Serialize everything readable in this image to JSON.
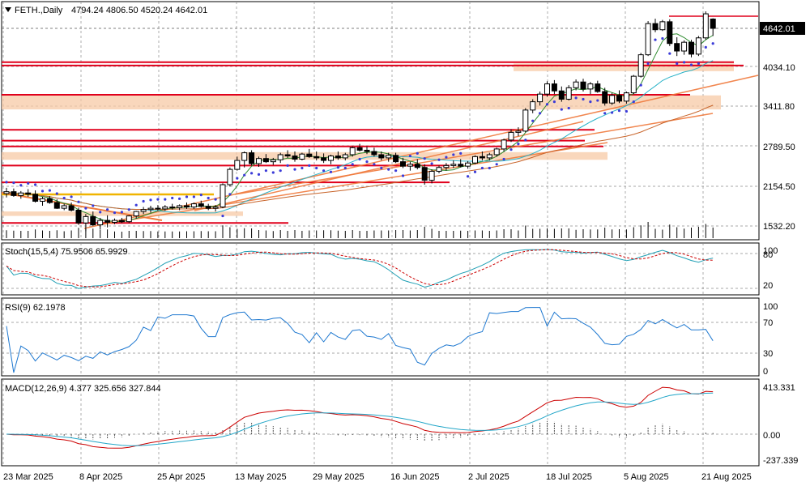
{
  "header": {
    "symbol": "FETH.,Daily",
    "ohlc": "4794.24 4806.50 4520.24 4642.01",
    "current_price_tag": "4642.01"
  },
  "panes": {
    "price": {
      "ticks": [
        "4034.10",
        "3411.80",
        "2789.50",
        "2154.50",
        "1532.20"
      ]
    },
    "stoch": {
      "label": "Stoch(15,5,4) 75.9506 65.9929",
      "ticks": [
        "100",
        "80",
        "20"
      ],
      "k": 75.95,
      "d": 65.99
    },
    "rsi": {
      "label": "RSI(9) 62.1978",
      "ticks": [
        "100",
        "70",
        "30",
        "0"
      ],
      "value": 62.2
    },
    "macd": {
      "label": "MACD(12,26,9) 4.377 325.656 327.844",
      "ticks": [
        "413.331",
        "0.00",
        "-237.339"
      ]
    }
  },
  "x_axis": [
    "23 Mar 2025",
    "8 Apr 2025",
    "25 Apr 2025",
    "13 May 2025",
    "29 May 2025",
    "16 Jun 2025",
    "2 Jul 2025",
    "18 Jul 2025",
    "5 Aug 2025",
    "21 Aug 2025"
  ],
  "colors": {
    "bull": "#ffffff",
    "bear": "#000000",
    "grid": "#8a8a8a",
    "support": "#e0001b",
    "zone": "#f7c9a6",
    "trend": "#f07a3c",
    "ma_fast": "#2e8b2e",
    "ma_mid": "#2ab3c8",
    "ma_slow": "#c8642a",
    "sar": "#3b3bd8",
    "stoch_main": "#1f9fb4",
    "stoch_signal": "#cc0000",
    "rsi": "#1e78d0",
    "macd_line": "#cc0000",
    "macd_signal": "#22a6c8",
    "macd_hist": "#555555"
  },
  "chart_data": {
    "type": "candlestick",
    "title": "FETH.,Daily",
    "x_labels": [
      "23 Mar 2025",
      "8 Apr 2025",
      "25 Apr 2025",
      "13 May 2025",
      "29 May 2025",
      "16 Jun 2025",
      "2 Jul 2025",
      "18 Jul 2025",
      "5 Aug 2025",
      "21 Aug 2025"
    ],
    "y_ticks": [
      1532.2,
      2154.5,
      2789.5,
      3411.8,
      4034.1
    ],
    "last_close": 4642.01,
    "candles": [
      [
        2040,
        2130,
        1980,
        2070
      ],
      [
        2070,
        2120,
        1990,
        2010
      ],
      [
        2010,
        2080,
        1960,
        2050
      ],
      [
        2050,
        2110,
        1990,
        2030
      ],
      [
        2030,
        2090,
        1900,
        1920
      ],
      [
        1920,
        1990,
        1850,
        1960
      ],
      [
        1960,
        2000,
        1880,
        1900
      ],
      [
        1900,
        1950,
        1800,
        1810
      ],
      [
        1810,
        1880,
        1780,
        1850
      ],
      [
        1850,
        1900,
        1760,
        1780
      ],
      [
        1780,
        1820,
        1550,
        1580
      ],
      [
        1580,
        1720,
        1450,
        1680
      ],
      [
        1680,
        1760,
        1530,
        1550
      ],
      [
        1550,
        1660,
        1480,
        1620
      ],
      [
        1620,
        1700,
        1510,
        1590
      ],
      [
        1590,
        1650,
        1560,
        1620
      ],
      [
        1620,
        1660,
        1580,
        1600
      ],
      [
        1600,
        1700,
        1580,
        1690
      ],
      [
        1690,
        1770,
        1650,
        1760
      ],
      [
        1760,
        1830,
        1720,
        1790
      ],
      [
        1790,
        1850,
        1740,
        1810
      ],
      [
        1810,
        1860,
        1770,
        1800
      ],
      [
        1800,
        1860,
        1770,
        1830
      ],
      [
        1830,
        1880,
        1790,
        1820
      ],
      [
        1820,
        1870,
        1780,
        1850
      ],
      [
        1850,
        1900,
        1800,
        1830
      ],
      [
        1830,
        1900,
        1800,
        1880
      ],
      [
        1880,
        1930,
        1820,
        1840
      ],
      [
        1840,
        1880,
        1780,
        1810
      ],
      [
        1810,
        1860,
        1760,
        1830
      ],
      [
        1830,
        2200,
        1810,
        2180
      ],
      [
        2180,
        2450,
        2150,
        2420
      ],
      [
        2420,
        2620,
        2400,
        2560
      ],
      [
        2560,
        2700,
        2450,
        2680
      ],
      [
        2680,
        2720,
        2480,
        2510
      ],
      [
        2510,
        2620,
        2460,
        2590
      ],
      [
        2590,
        2660,
        2520,
        2540
      ],
      [
        2540,
        2600,
        2490,
        2570
      ],
      [
        2570,
        2680,
        2520,
        2650
      ],
      [
        2650,
        2720,
        2600,
        2630
      ],
      [
        2630,
        2700,
        2540,
        2580
      ],
      [
        2580,
        2680,
        2560,
        2660
      ],
      [
        2660,
        2740,
        2600,
        2620
      ],
      [
        2620,
        2700,
        2560,
        2600
      ],
      [
        2600,
        2670,
        2520,
        2560
      ],
      [
        2560,
        2650,
        2500,
        2630
      ],
      [
        2630,
        2700,
        2570,
        2600
      ],
      [
        2600,
        2680,
        2560,
        2650
      ],
      [
        2650,
        2780,
        2620,
        2760
      ],
      [
        2760,
        2820,
        2700,
        2720
      ],
      [
        2720,
        2780,
        2660,
        2700
      ],
      [
        2700,
        2760,
        2620,
        2650
      ],
      [
        2650,
        2700,
        2560,
        2600
      ],
      [
        2600,
        2680,
        2540,
        2640
      ],
      [
        2640,
        2680,
        2520,
        2540
      ],
      [
        2540,
        2600,
        2440,
        2470
      ],
      [
        2470,
        2540,
        2400,
        2500
      ],
      [
        2500,
        2580,
        2420,
        2450
      ],
      [
        2450,
        2500,
        2180,
        2250
      ],
      [
        2250,
        2420,
        2200,
        2390
      ],
      [
        2390,
        2480,
        2360,
        2450
      ],
      [
        2450,
        2520,
        2400,
        2480
      ],
      [
        2480,
        2560,
        2440,
        2500
      ],
      [
        2500,
        2580,
        2450,
        2470
      ],
      [
        2470,
        2550,
        2430,
        2520
      ],
      [
        2520,
        2640,
        2500,
        2620
      ],
      [
        2620,
        2700,
        2560,
        2600
      ],
      [
        2600,
        2680,
        2560,
        2650
      ],
      [
        2650,
        2760,
        2620,
        2740
      ],
      [
        2740,
        2900,
        2700,
        2880
      ],
      [
        2880,
        3050,
        2850,
        3000
      ],
      [
        3000,
        3080,
        2940,
        3020
      ],
      [
        3020,
        3380,
        3000,
        3350
      ],
      [
        3350,
        3520,
        3300,
        3480
      ],
      [
        3480,
        3640,
        3420,
        3600
      ],
      [
        3600,
        3800,
        3560,
        3760
      ],
      [
        3760,
        3820,
        3600,
        3650
      ],
      [
        3650,
        3720,
        3480,
        3520
      ],
      [
        3520,
        3740,
        3500,
        3700
      ],
      [
        3700,
        3830,
        3660,
        3790
      ],
      [
        3790,
        3840,
        3640,
        3680
      ],
      [
        3680,
        3790,
        3600,
        3760
      ],
      [
        3760,
        3810,
        3620,
        3640
      ],
      [
        3640,
        3700,
        3420,
        3460
      ],
      [
        3460,
        3620,
        3430,
        3580
      ],
      [
        3580,
        3660,
        3460,
        3490
      ],
      [
        3490,
        3640,
        3450,
        3620
      ],
      [
        3620,
        3900,
        3600,
        3880
      ],
      [
        3880,
        4250,
        3860,
        4220
      ],
      [
        4220,
        4760,
        4200,
        4720
      ],
      [
        4720,
        4800,
        4580,
        4620
      ],
      [
        4620,
        4780,
        4600,
        4750
      ],
      [
        4750,
        4790,
        4360,
        4400
      ],
      [
        4400,
        4500,
        4200,
        4280
      ],
      [
        4280,
        4450,
        4220,
        4420
      ],
      [
        4420,
        4460,
        4180,
        4230
      ],
      [
        4230,
        4520,
        4200,
        4490
      ],
      [
        4490,
        4920,
        4460,
        4880
      ],
      [
        4794.24,
        4806.5,
        4520.24,
        4642.01
      ]
    ],
    "levels": {
      "resistance": [
        4102,
        4048,
        3590,
        3040,
        2870,
        2780,
        2480,
        2216,
        1580
      ],
      "zones": [
        [
          3960,
          4080
        ],
        [
          3360,
          3580
        ],
        [
          2570,
          2690
        ],
        [
          1690,
          1760
        ]
      ]
    },
    "stoch_last": {
      "k": 75.95,
      "d": 65.99
    },
    "rsi_last": 62.2,
    "macd_last": {
      "hist": 4.377,
      "signal": 325.656,
      "main": 327.844
    },
    "macd_range": [
      -237.339,
      413.331
    ]
  }
}
